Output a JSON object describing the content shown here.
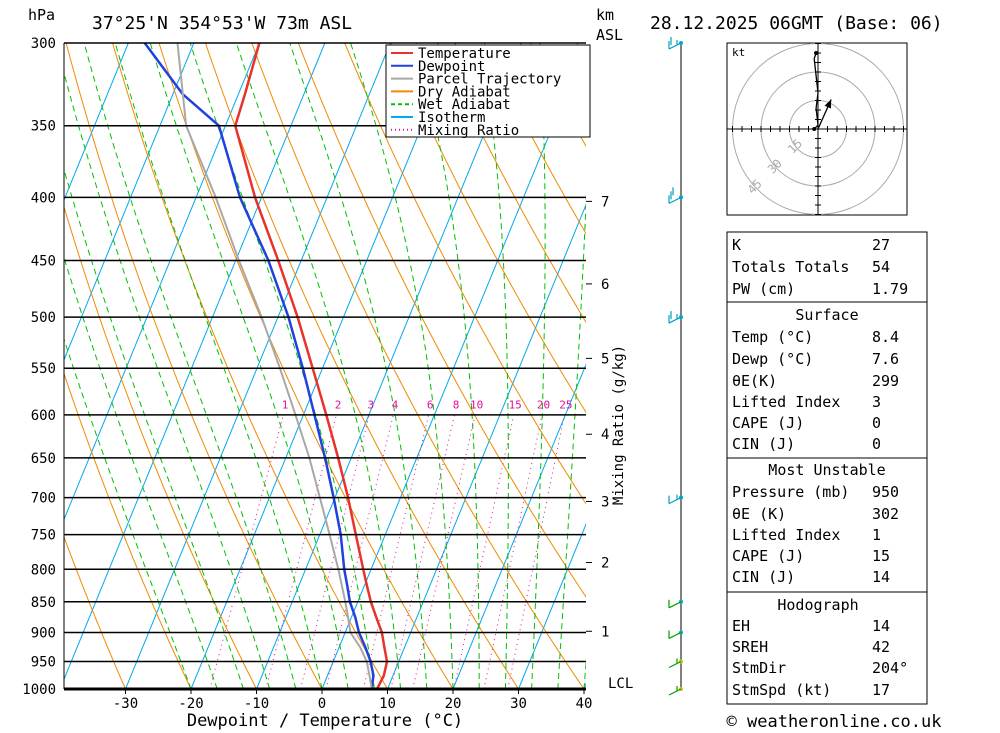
{
  "header": {
    "hpa_label": "hPa",
    "location": "37°25'N  354°53'W  73m  ASL",
    "km_label": "km",
    "asl_label": "ASL",
    "datetime": "28.12.2025  06GMT  (Base: 06)"
  },
  "legend": [
    {
      "label": "Temperature",
      "color": "#e8322a",
      "style": "solid"
    },
    {
      "label": "Dewpoint",
      "color": "#2040e0",
      "style": "solid"
    },
    {
      "label": "Parcel Trajectory",
      "color": "#a8a8a8",
      "style": "solid"
    },
    {
      "label": "Dry Adiabat",
      "color": "#f08a00",
      "style": "solid"
    },
    {
      "label": "Wet Adiabat",
      "color": "#00c000",
      "style": "dashed"
    },
    {
      "label": "Isotherm",
      "color": "#00a8f0",
      "style": "solid"
    },
    {
      "label": "Mixing Ratio",
      "color": "#e0109a",
      "style": "dotted"
    }
  ],
  "chart_data": {
    "type": "line",
    "title": "Skew-T log-P",
    "xlabel": "Dewpoint / Temperature (°C)",
    "ylabel": "hPa",
    "xlim": [
      -40,
      40
    ],
    "ylim": [
      1000,
      300
    ],
    "x_ticks": [
      "-30",
      "-20",
      "-10",
      "0",
      "10",
      "20",
      "30",
      "40"
    ],
    "x_tick_values": [
      -30,
      -20,
      -10,
      0,
      10,
      20,
      30,
      40
    ],
    "pressure_levels": [
      300,
      350,
      400,
      450,
      500,
      550,
      600,
      650,
      700,
      750,
      800,
      850,
      900,
      950,
      1000
    ],
    "km_ticks": [
      {
        "label": "7",
        "p": 403
      },
      {
        "label": "6",
        "p": 470
      },
      {
        "label": "5",
        "p": 540
      },
      {
        "label": "4",
        "p": 622
      },
      {
        "label": "3",
        "p": 705
      },
      {
        "label": "2",
        "p": 790
      },
      {
        "label": "1",
        "p": 898
      }
    ],
    "lcl_label": "LCL",
    "lcl_pressure": 990,
    "mixing_ratio_axis_label": "Mixing Ratio (g/kg)",
    "mixing_ratio_labels": [
      "1",
      "2",
      "3",
      "4",
      "6",
      "8",
      "10",
      "15",
      "20",
      "25"
    ],
    "mixing_ratio_values": [
      1,
      2,
      3,
      4,
      6,
      8,
      10,
      15,
      20,
      25
    ],
    "mixing_ratio_label_pressure": 593,
    "series": [
      {
        "name": "Temperature",
        "color": "#e8322a",
        "points": [
          [
            1000,
            8.4
          ],
          [
            975,
            8.6
          ],
          [
            950,
            8.2
          ],
          [
            925,
            6.9
          ],
          [
            900,
            5.6
          ],
          [
            875,
            3.8
          ],
          [
            850,
            2.0
          ],
          [
            825,
            0.4
          ],
          [
            800,
            -1.2
          ],
          [
            750,
            -4.5
          ],
          [
            700,
            -8.0
          ],
          [
            650,
            -12.0
          ],
          [
            600,
            -16.5
          ],
          [
            550,
            -21.5
          ],
          [
            500,
            -27.0
          ],
          [
            450,
            -33.5
          ],
          [
            400,
            -41.0
          ],
          [
            350,
            -48.5
          ],
          [
            330,
            -49.0
          ],
          [
            300,
            -50.0
          ]
        ]
      },
      {
        "name": "Dewpoint",
        "color": "#2040e0",
        "points": [
          [
            1000,
            7.6
          ],
          [
            975,
            7.0
          ],
          [
            950,
            5.7
          ],
          [
            925,
            4.0
          ],
          [
            900,
            2.1
          ],
          [
            875,
            0.6
          ],
          [
            850,
            -1.2
          ],
          [
            825,
            -2.6
          ],
          [
            800,
            -4.1
          ],
          [
            750,
            -6.8
          ],
          [
            700,
            -10.2
          ],
          [
            650,
            -14.0
          ],
          [
            600,
            -18.3
          ],
          [
            550,
            -23.0
          ],
          [
            500,
            -28.4
          ],
          [
            450,
            -35.0
          ],
          [
            400,
            -43.3
          ],
          [
            350,
            -51.0
          ],
          [
            330,
            -58.5
          ],
          [
            300,
            -67.5
          ]
        ]
      },
      {
        "name": "Parcel Trajectory",
        "color": "#a8a8a8",
        "points": [
          [
            1000,
            7.6
          ],
          [
            975,
            6.4
          ],
          [
            950,
            5.1
          ],
          [
            925,
            3.2
          ],
          [
            900,
            0.8
          ],
          [
            875,
            -0.5
          ],
          [
            850,
            -1.9
          ],
          [
            800,
            -5.0
          ],
          [
            750,
            -8.5
          ],
          [
            700,
            -12.3
          ],
          [
            650,
            -16.4
          ],
          [
            600,
            -21.2
          ],
          [
            550,
            -26.5
          ],
          [
            500,
            -32.5
          ],
          [
            450,
            -39.5
          ],
          [
            400,
            -47.0
          ],
          [
            350,
            -56.0
          ],
          [
            300,
            -62.5
          ]
        ]
      }
    ]
  },
  "hodograph": {
    "unit_label": "kt",
    "ring_labels": [
      "15",
      "30",
      "45"
    ],
    "ring_speeds": [
      15,
      30,
      45
    ],
    "trace": [
      [
        -2,
        0
      ],
      [
        -1,
        1
      ],
      [
        0,
        2
      ],
      [
        -1,
        11
      ],
      [
        0,
        19
      ],
      [
        -1,
        28
      ],
      [
        -2,
        37
      ],
      [
        -1,
        40
      ]
    ],
    "storm_motion": {
      "dir_deg": 204,
      "speed_kt": 17
    }
  },
  "indices": {
    "k_label": "K",
    "k": "27",
    "tt_label": "Totals Totals",
    "tt": "54",
    "pw_label": "PW (cm)",
    "pw": "1.79"
  },
  "surface": {
    "title": "Surface",
    "temp_label": "Temp (°C)",
    "temp": "8.4",
    "dewp_label": "Dewp (°C)",
    "dewp": "7.6",
    "thetae_label": "θE(K)",
    "thetae": "299",
    "li_label": "Lifted Index",
    "li": "3",
    "cape_label": "CAPE (J)",
    "cape": "0",
    "cin_label": "CIN (J)",
    "cin": "0"
  },
  "most_unstable": {
    "title": "Most Unstable",
    "pressure_label": "Pressure (mb)",
    "pressure": "950",
    "thetae_label": "θE (K)",
    "thetae": "302",
    "li_label": "Lifted Index",
    "li": "1",
    "cape_label": "CAPE (J)",
    "cape": "15",
    "cin_label": "CIN (J)",
    "cin": "14"
  },
  "hodo_table": {
    "title": "Hodograph",
    "eh_label": "EH",
    "eh": "14",
    "sreh_label": "SREH",
    "sreh": "42",
    "stmdir_label": "StmDir",
    "stmdir": "204°",
    "stmspd_label": "StmSpd (kt)",
    "stmspd": "17"
  },
  "wind_barbs": [
    {
      "p": 300,
      "dir": 260,
      "spd": 25
    },
    {
      "p": 400,
      "dir": 255,
      "spd": 30
    },
    {
      "p": 500,
      "dir": 250,
      "spd": 25
    },
    {
      "p": 700,
      "dir": 230,
      "spd": 15
    },
    {
      "p": 850,
      "dir": 210,
      "spd": 10
    },
    {
      "p": 900,
      "dir": 200,
      "spd": 10
    },
    {
      "p": 950,
      "dir": 190,
      "spd": 5
    },
    {
      "p": 1000,
      "dir": 170,
      "spd": 5
    }
  ],
  "footer": {
    "credit": "© weatheronline.co.uk"
  }
}
